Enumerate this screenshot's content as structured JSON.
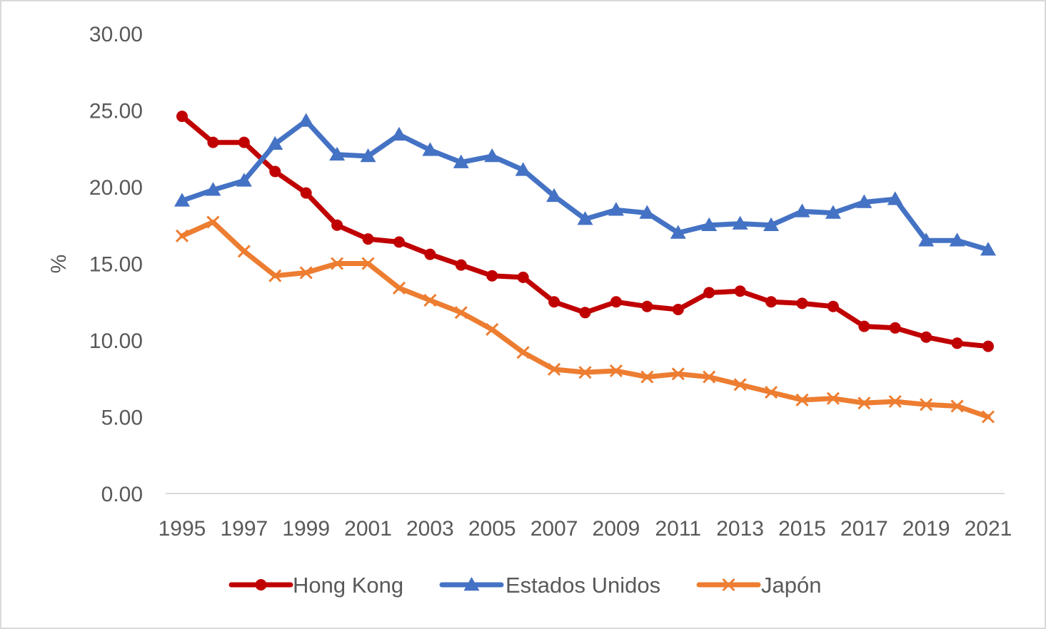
{
  "chart_data": {
    "type": "line",
    "title": "",
    "xlabel": "",
    "ylabel": "%",
    "ylim": [
      0,
      30
    ],
    "yticks": [
      "0.00",
      "5.00",
      "10.00",
      "15.00",
      "20.00",
      "25.00",
      "30.00"
    ],
    "x": [
      1995,
      1996,
      1997,
      1998,
      1999,
      2000,
      2001,
      2002,
      2003,
      2004,
      2005,
      2006,
      2007,
      2008,
      2009,
      2010,
      2011,
      2012,
      2013,
      2014,
      2015,
      2016,
      2017,
      2018,
      2019,
      2020,
      2021
    ],
    "xtick_labels": [
      "1995",
      "1997",
      "1999",
      "2001",
      "2003",
      "2005",
      "2007",
      "2009",
      "2011",
      "2013",
      "2015",
      "2017",
      "2019",
      "2021"
    ],
    "legend_position": "bottom",
    "series": [
      {
        "name": "Hong Kong",
        "color": "#c00000",
        "marker": "circle",
        "values": [
          24.6,
          22.9,
          22.9,
          21.0,
          19.6,
          17.5,
          16.6,
          16.4,
          15.6,
          14.9,
          14.2,
          14.1,
          12.5,
          11.8,
          12.5,
          12.2,
          12.0,
          13.1,
          13.2,
          12.5,
          12.4,
          12.2,
          10.9,
          10.8,
          10.2,
          9.8,
          9.6
        ]
      },
      {
        "name": "Estados Unidos",
        "color": "#4472c4",
        "marker": "triangle",
        "values": [
          19.1,
          19.8,
          20.4,
          22.8,
          24.3,
          22.1,
          22.0,
          23.4,
          22.4,
          21.6,
          22.0,
          21.1,
          19.4,
          17.9,
          18.5,
          18.3,
          17.0,
          17.5,
          17.6,
          17.5,
          18.4,
          18.3,
          19.0,
          19.2,
          16.5,
          16.5,
          15.9
        ]
      },
      {
        "name": "Japón",
        "color": "#ed7d31",
        "marker": "x",
        "values": [
          16.8,
          17.7,
          15.8,
          14.2,
          14.4,
          15.0,
          15.0,
          13.4,
          12.6,
          11.8,
          10.7,
          9.2,
          8.1,
          7.9,
          8.0,
          7.6,
          7.8,
          7.6,
          7.1,
          6.6,
          6.1,
          6.2,
          5.9,
          6.0,
          5.8,
          5.7,
          5.0
        ]
      }
    ]
  }
}
